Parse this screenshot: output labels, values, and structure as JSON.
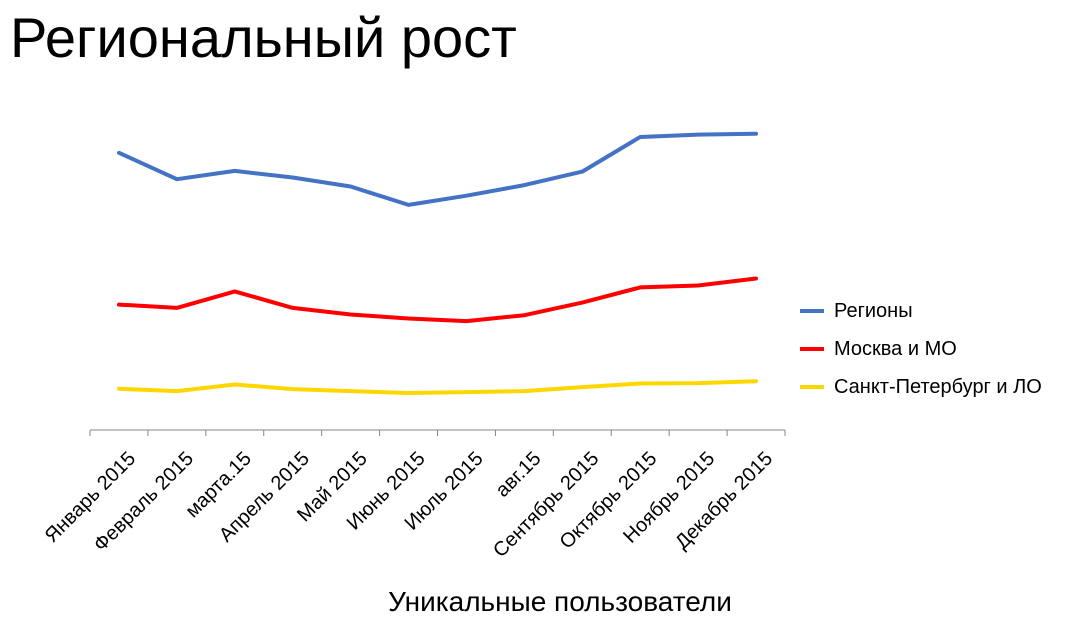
{
  "title": "Региональный рост",
  "chart_data": {
    "type": "line",
    "title": "",
    "categories": [
      "Январь 2015",
      "Февраль 2015",
      "марта.15",
      "Апрель 2015",
      "Май 2015",
      "Июнь 2015",
      "Июль 2015",
      "авг.15",
      "Сентябрь 2015",
      "Октябрь 2015",
      "Ноябрь 2015",
      "Декабрь 2015"
    ],
    "xlabel": "Уникальные пользователи",
    "ylabel": "",
    "y_axis_visible": false,
    "ylim": [
      0,
      100
    ],
    "grid": false,
    "legend_position": "right",
    "series": [
      {
        "name": "Регионы",
        "color": "#4472C4",
        "values": [
          84,
          76,
          78.5,
          76.5,
          73.8,
          68.2,
          71,
          74.2,
          78.3,
          88.8,
          89.5,
          89.8
        ]
      },
      {
        "name": "Москва и МО",
        "color": "#FF0000",
        "values": [
          38,
          37,
          42,
          37,
          35,
          33.8,
          33,
          34.8,
          38.6,
          43.2,
          43.8,
          45.9
        ]
      },
      {
        "name": "Санкт-Петербург и ЛО",
        "color": "#FFD700",
        "values": [
          12.5,
          11.8,
          13.8,
          12.4,
          11.8,
          11.2,
          11.5,
          11.8,
          13,
          14.1,
          14.2,
          14.8
        ]
      }
    ]
  }
}
